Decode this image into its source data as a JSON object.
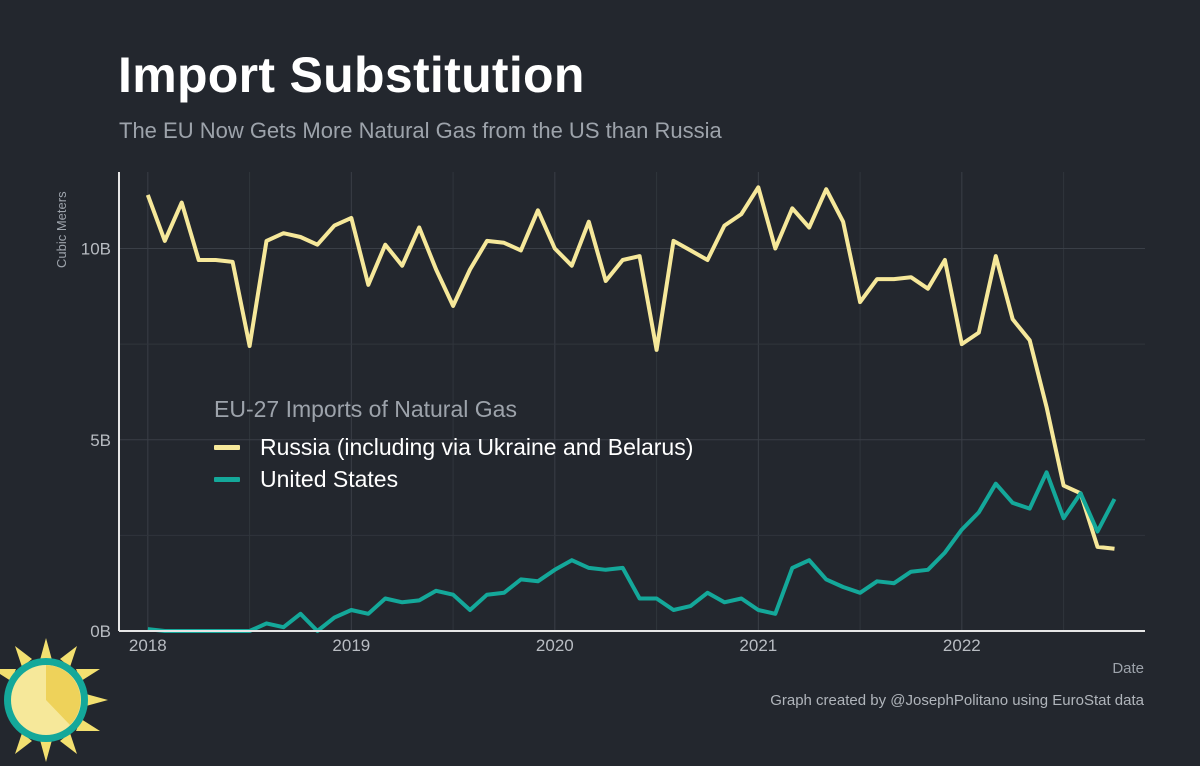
{
  "header": {
    "title": "Import Substitution",
    "subtitle": "The EU Now Gets More Natural Gas from the US than Russia"
  },
  "legend": {
    "title": "EU-27 Imports of Natural Gas",
    "items": [
      {
        "label": "Russia (including via Ukraine and Belarus)",
        "color": "#f6e89a"
      },
      {
        "label": "United States",
        "color": "#14a89a"
      }
    ]
  },
  "caption": "Graph created by @JosephPolitano using EuroStat data",
  "chart_data": {
    "type": "line",
    "title": "Import Substitution",
    "subtitle": "The EU Now Gets More Natural Gas from the US than Russia",
    "xlabel": "Date",
    "ylabel": "Cubic Meters",
    "x_start": "2018-01",
    "x_ticks": [
      {
        "label": "2018",
        "value": 0
      },
      {
        "label": "2019",
        "value": 12
      },
      {
        "label": "2020",
        "value": 24
      },
      {
        "label": "2021",
        "value": 36
      },
      {
        "label": "2022",
        "value": 48
      }
    ],
    "xlim": [
      -1.7,
      58.8
    ],
    "ylim": [
      0,
      12
    ],
    "y_ticks": [
      {
        "label": "0B",
        "value": 0
      },
      {
        "label": "5B",
        "value": 5
      },
      {
        "label": "10B",
        "value": 10
      }
    ],
    "grid": true,
    "legend_position": "middle-left",
    "series": [
      {
        "name": "Russia (including via Ukraine and Belarus)",
        "color": "#f6e89a",
        "values": [
          11.4,
          10.2,
          11.2,
          9.7,
          9.7,
          9.65,
          7.45,
          10.2,
          10.4,
          10.3,
          10.1,
          10.6,
          10.8,
          9.05,
          10.1,
          9.55,
          10.55,
          9.45,
          8.5,
          9.45,
          10.2,
          10.15,
          9.95,
          11.0,
          10.0,
          9.55,
          10.7,
          9.15,
          9.7,
          9.8,
          7.35,
          10.2,
          9.95,
          9.7,
          10.6,
          10.9,
          11.6,
          10.0,
          11.05,
          10.55,
          11.55,
          10.7,
          8.6,
          9.2,
          9.2,
          9.25,
          8.95,
          9.7,
          7.5,
          7.8,
          9.8,
          8.15,
          7.6,
          5.85,
          3.8,
          3.6,
          2.2,
          2.15
        ],
        "values_unit": "billion cubic meters"
      },
      {
        "name": "United States",
        "color": "#14a89a",
        "values": [
          0.05,
          0.0,
          0.0,
          0.0,
          0.0,
          0.0,
          0.0,
          0.2,
          0.1,
          0.45,
          0.0,
          0.35,
          0.55,
          0.45,
          0.85,
          0.75,
          0.8,
          1.05,
          0.95,
          0.55,
          0.95,
          1.0,
          1.35,
          1.3,
          1.6,
          1.85,
          1.65,
          1.6,
          1.65,
          0.85,
          0.85,
          0.55,
          0.65,
          1.0,
          0.75,
          0.85,
          0.55,
          0.45,
          1.65,
          1.85,
          1.35,
          1.15,
          1.0,
          1.3,
          1.25,
          1.55,
          1.6,
          2.05,
          2.65,
          3.1,
          3.85,
          3.35,
          3.2,
          4.15,
          2.95,
          3.6,
          2.6,
          3.45
        ],
        "values_unit": "billion cubic meters"
      }
    ]
  }
}
